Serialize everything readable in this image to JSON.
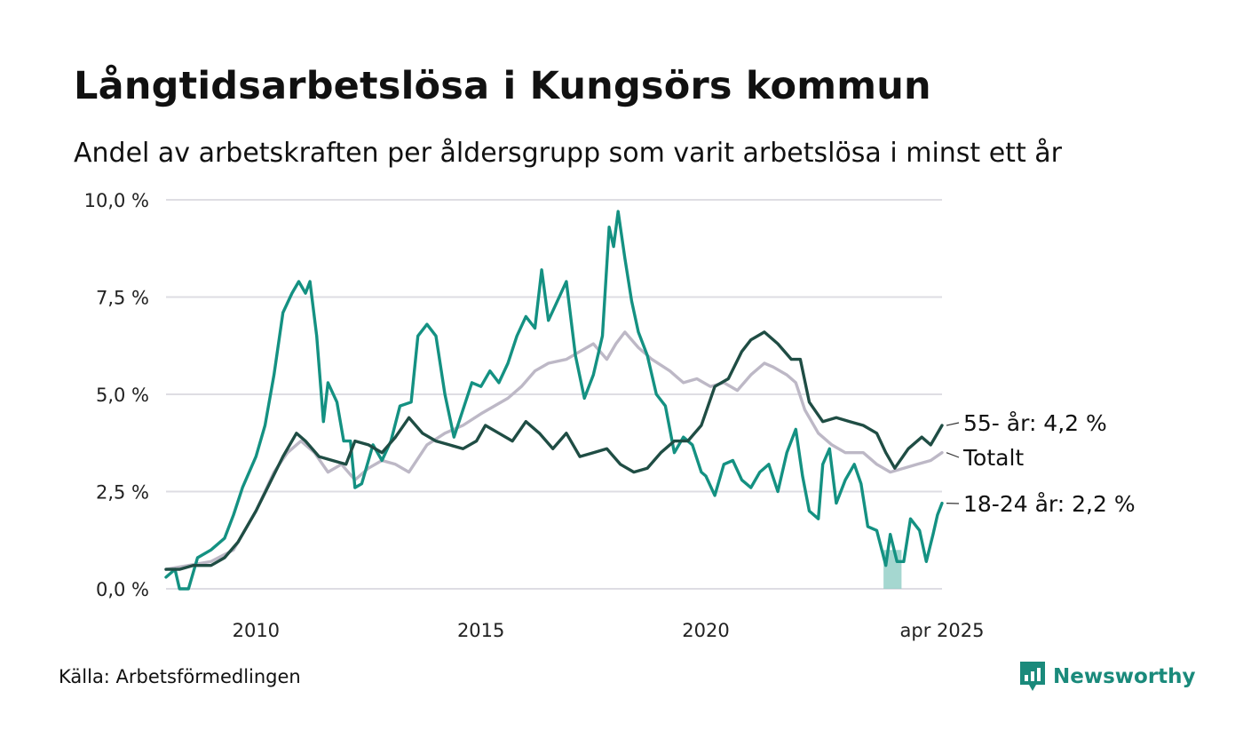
{
  "title": "Långtidsarbetslösa i Kungsörs kommun",
  "subtitle": "Andel av arbetskraften per åldersgrupp som varit arbetslösa i minst ett år",
  "source": "Källa: Arbetsförmedlingen",
  "brand": "Newsworthy",
  "colors": {
    "youth": "#149182",
    "senior": "#1f4d44",
    "total": "#bdb8c6",
    "youth_band": "#8fcdc4",
    "grid": "#dedde3",
    "brand": "#1a8a7b"
  },
  "chart_data": {
    "type": "line",
    "x_unit": "year (decimal)",
    "xlim": [
      2008.0,
      2025.25
    ],
    "ylim": [
      0,
      10
    ],
    "y_ticks": [
      0,
      2.5,
      5,
      7.5,
      10
    ],
    "y_tick_labels": [
      "0,0 %",
      "2,5 %",
      "5,0 %",
      "7,5 %",
      "10,0 %"
    ],
    "x_ticks": [
      2010,
      2015,
      2020,
      2025.25
    ],
    "x_tick_labels": [
      "2010",
      "2015",
      "2020",
      "apr 2025"
    ],
    "grid": "horizontal",
    "series": [
      {
        "key": "total",
        "name": "Totalt",
        "end_label": "Totalt",
        "points": [
          [
            2008.0,
            0.5
          ],
          [
            2008.5,
            0.6
          ],
          [
            2009.0,
            0.7
          ],
          [
            2009.5,
            1.0
          ],
          [
            2010.0,
            2.0
          ],
          [
            2010.4,
            3.0
          ],
          [
            2010.7,
            3.5
          ],
          [
            2011.0,
            3.8
          ],
          [
            2011.3,
            3.5
          ],
          [
            2011.6,
            3.0
          ],
          [
            2011.9,
            3.2
          ],
          [
            2012.2,
            2.8
          ],
          [
            2012.5,
            3.1
          ],
          [
            2012.8,
            3.3
          ],
          [
            2013.1,
            3.2
          ],
          [
            2013.4,
            3.0
          ],
          [
            2013.8,
            3.7
          ],
          [
            2014.2,
            4.0
          ],
          [
            2014.6,
            4.2
          ],
          [
            2015.0,
            4.5
          ],
          [
            2015.3,
            4.7
          ],
          [
            2015.6,
            4.9
          ],
          [
            2015.9,
            5.2
          ],
          [
            2016.2,
            5.6
          ],
          [
            2016.5,
            5.8
          ],
          [
            2016.9,
            5.9
          ],
          [
            2017.2,
            6.1
          ],
          [
            2017.5,
            6.3
          ],
          [
            2017.8,
            5.9
          ],
          [
            2018.0,
            6.3
          ],
          [
            2018.2,
            6.6
          ],
          [
            2018.5,
            6.2
          ],
          [
            2018.8,
            5.9
          ],
          [
            2019.2,
            5.6
          ],
          [
            2019.5,
            5.3
          ],
          [
            2019.8,
            5.4
          ],
          [
            2020.1,
            5.2
          ],
          [
            2020.4,
            5.3
          ],
          [
            2020.7,
            5.1
          ],
          [
            2021.0,
            5.5
          ],
          [
            2021.3,
            5.8
          ],
          [
            2021.5,
            5.7
          ],
          [
            2021.8,
            5.5
          ],
          [
            2022.0,
            5.3
          ],
          [
            2022.2,
            4.6
          ],
          [
            2022.5,
            4.0
          ],
          [
            2022.8,
            3.7
          ],
          [
            2023.1,
            3.5
          ],
          [
            2023.5,
            3.5
          ],
          [
            2023.8,
            3.2
          ],
          [
            2024.1,
            3.0
          ],
          [
            2024.4,
            3.1
          ],
          [
            2024.7,
            3.2
          ],
          [
            2025.0,
            3.3
          ],
          [
            2025.25,
            3.5
          ]
        ]
      },
      {
        "key": "youth",
        "name": "18-24 år",
        "end_label": "18-24 år: 2,2 %",
        "points": [
          [
            2008.0,
            0.3
          ],
          [
            2008.2,
            0.5
          ],
          [
            2008.3,
            0.0
          ],
          [
            2008.5,
            0.0
          ],
          [
            2008.7,
            0.8
          ],
          [
            2009.0,
            1.0
          ],
          [
            2009.3,
            1.3
          ],
          [
            2009.5,
            1.9
          ],
          [
            2009.7,
            2.6
          ],
          [
            2010.0,
            3.4
          ],
          [
            2010.2,
            4.2
          ],
          [
            2010.4,
            5.5
          ],
          [
            2010.6,
            7.1
          ],
          [
            2010.8,
            7.6
          ],
          [
            2010.95,
            7.9
          ],
          [
            2011.1,
            7.6
          ],
          [
            2011.2,
            7.9
          ],
          [
            2011.35,
            6.5
          ],
          [
            2011.5,
            4.3
          ],
          [
            2011.6,
            5.3
          ],
          [
            2011.8,
            4.8
          ],
          [
            2011.95,
            3.8
          ],
          [
            2012.1,
            3.8
          ],
          [
            2012.2,
            2.6
          ],
          [
            2012.35,
            2.7
          ],
          [
            2012.6,
            3.7
          ],
          [
            2012.8,
            3.3
          ],
          [
            2013.0,
            3.8
          ],
          [
            2013.2,
            4.7
          ],
          [
            2013.45,
            4.8
          ],
          [
            2013.6,
            6.5
          ],
          [
            2013.8,
            6.8
          ],
          [
            2014.0,
            6.5
          ],
          [
            2014.2,
            5.0
          ],
          [
            2014.4,
            3.9
          ],
          [
            2014.6,
            4.6
          ],
          [
            2014.8,
            5.3
          ],
          [
            2015.0,
            5.2
          ],
          [
            2015.2,
            5.6
          ],
          [
            2015.4,
            5.3
          ],
          [
            2015.6,
            5.8
          ],
          [
            2015.8,
            6.5
          ],
          [
            2016.0,
            7.0
          ],
          [
            2016.2,
            6.7
          ],
          [
            2016.35,
            8.2
          ],
          [
            2016.5,
            6.9
          ],
          [
            2016.7,
            7.4
          ],
          [
            2016.9,
            7.9
          ],
          [
            2017.1,
            6.0
          ],
          [
            2017.3,
            4.9
          ],
          [
            2017.5,
            5.5
          ],
          [
            2017.7,
            6.5
          ],
          [
            2017.85,
            9.3
          ],
          [
            2017.95,
            8.8
          ],
          [
            2018.05,
            9.7
          ],
          [
            2018.2,
            8.5
          ],
          [
            2018.35,
            7.4
          ],
          [
            2018.5,
            6.6
          ],
          [
            2018.7,
            6.0
          ],
          [
            2018.9,
            5.0
          ],
          [
            2019.1,
            4.7
          ],
          [
            2019.3,
            3.5
          ],
          [
            2019.5,
            3.9
          ],
          [
            2019.7,
            3.7
          ],
          [
            2019.9,
            3.0
          ],
          [
            2020.0,
            2.9
          ],
          [
            2020.2,
            2.4
          ],
          [
            2020.4,
            3.2
          ],
          [
            2020.6,
            3.3
          ],
          [
            2020.8,
            2.8
          ],
          [
            2021.0,
            2.6
          ],
          [
            2021.2,
            3.0
          ],
          [
            2021.4,
            3.2
          ],
          [
            2021.6,
            2.5
          ],
          [
            2021.8,
            3.5
          ],
          [
            2022.0,
            4.1
          ],
          [
            2022.15,
            2.9
          ],
          [
            2022.3,
            2.0
          ],
          [
            2022.5,
            1.8
          ],
          [
            2022.6,
            3.2
          ],
          [
            2022.75,
            3.6
          ],
          [
            2022.9,
            2.2
          ],
          [
            2023.1,
            2.8
          ],
          [
            2023.3,
            3.2
          ],
          [
            2023.45,
            2.7
          ],
          [
            2023.6,
            1.6
          ],
          [
            2023.8,
            1.5
          ],
          [
            2024.0,
            0.6
          ],
          [
            2024.1,
            1.4
          ],
          [
            2024.25,
            0.7
          ],
          [
            2024.4,
            0.7
          ],
          [
            2024.55,
            1.8
          ],
          [
            2024.75,
            1.5
          ],
          [
            2024.9,
            0.7
          ],
          [
            2025.05,
            1.4
          ],
          [
            2025.15,
            1.9
          ],
          [
            2025.25,
            2.2
          ]
        ]
      },
      {
        "key": "senior",
        "name": "55- år",
        "end_label": "55- år: 4,2 %",
        "points": [
          [
            2008.0,
            0.5
          ],
          [
            2008.3,
            0.5
          ],
          [
            2008.6,
            0.6
          ],
          [
            2009.0,
            0.6
          ],
          [
            2009.3,
            0.8
          ],
          [
            2009.6,
            1.2
          ],
          [
            2010.0,
            2.0
          ],
          [
            2010.3,
            2.7
          ],
          [
            2010.6,
            3.4
          ],
          [
            2010.9,
            4.0
          ],
          [
            2011.1,
            3.8
          ],
          [
            2011.4,
            3.4
          ],
          [
            2011.7,
            3.3
          ],
          [
            2012.0,
            3.2
          ],
          [
            2012.2,
            3.8
          ],
          [
            2012.5,
            3.7
          ],
          [
            2012.8,
            3.5
          ],
          [
            2013.1,
            3.9
          ],
          [
            2013.4,
            4.4
          ],
          [
            2013.7,
            4.0
          ],
          [
            2014.0,
            3.8
          ],
          [
            2014.3,
            3.7
          ],
          [
            2014.6,
            3.6
          ],
          [
            2014.9,
            3.8
          ],
          [
            2015.1,
            4.2
          ],
          [
            2015.4,
            4.0
          ],
          [
            2015.7,
            3.8
          ],
          [
            2016.0,
            4.3
          ],
          [
            2016.3,
            4.0
          ],
          [
            2016.6,
            3.6
          ],
          [
            2016.9,
            4.0
          ],
          [
            2017.2,
            3.4
          ],
          [
            2017.5,
            3.5
          ],
          [
            2017.8,
            3.6
          ],
          [
            2018.1,
            3.2
          ],
          [
            2018.4,
            3.0
          ],
          [
            2018.7,
            3.1
          ],
          [
            2019.0,
            3.5
          ],
          [
            2019.3,
            3.8
          ],
          [
            2019.6,
            3.8
          ],
          [
            2019.9,
            4.2
          ],
          [
            2020.2,
            5.2
          ],
          [
            2020.5,
            5.4
          ],
          [
            2020.8,
            6.1
          ],
          [
            2021.0,
            6.4
          ],
          [
            2021.3,
            6.6
          ],
          [
            2021.6,
            6.3
          ],
          [
            2021.9,
            5.9
          ],
          [
            2022.1,
            5.9
          ],
          [
            2022.3,
            4.8
          ],
          [
            2022.6,
            4.3
          ],
          [
            2022.9,
            4.4
          ],
          [
            2023.2,
            4.3
          ],
          [
            2023.5,
            4.2
          ],
          [
            2023.8,
            4.0
          ],
          [
            2024.0,
            3.5
          ],
          [
            2024.2,
            3.1
          ],
          [
            2024.5,
            3.6
          ],
          [
            2024.8,
            3.9
          ],
          [
            2025.0,
            3.7
          ],
          [
            2025.25,
            4.2
          ]
        ]
      }
    ],
    "youth_band": [
      [
        2023.95,
        1.0,
        0.0
      ],
      [
        2024.35,
        1.0,
        0.0
      ]
    ]
  }
}
